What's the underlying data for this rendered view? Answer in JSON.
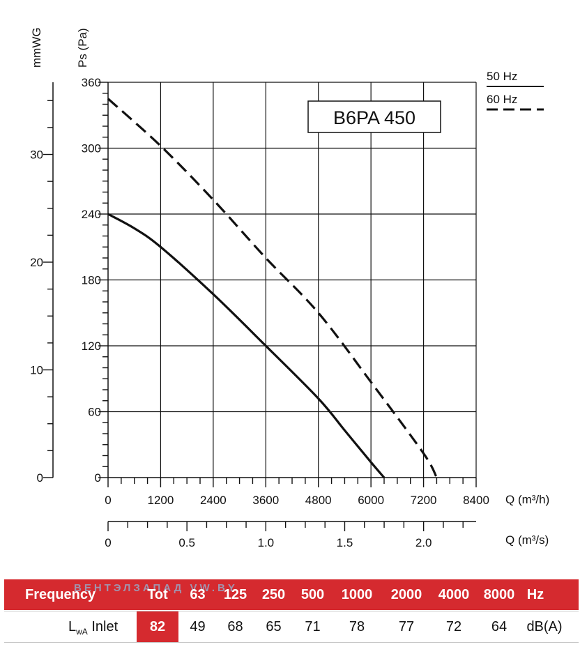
{
  "chart_data": {
    "type": "line",
    "model": "B6PA 450",
    "y_axis": {
      "label": "Ps (Pa)",
      "ticks": [
        "360",
        "300",
        "240",
        "180",
        "120",
        "60",
        "0"
      ],
      "range": [
        0,
        360
      ]
    },
    "y2_axis": {
      "label": "mmWG",
      "ticks": [
        "30",
        "20",
        "10",
        "0"
      ],
      "range": [
        0,
        36.7
      ]
    },
    "x_axis": {
      "label": "Q (m³/h)",
      "ticks": [
        "0",
        "1200",
        "2400",
        "3600",
        "4800",
        "6000",
        "7200",
        "8400"
      ],
      "range": [
        0,
        8400
      ]
    },
    "x2_axis": {
      "label": "Q (m³/s)",
      "ticks": [
        "0",
        "0.5",
        "1.0",
        "1.5",
        "2.0"
      ],
      "range": [
        0,
        2.333
      ]
    },
    "grid": true,
    "series": [
      {
        "name": "50 Hz",
        "style": "solid",
        "x": [
          0,
          600,
          1200,
          2400,
          3600,
          4800,
          5400,
          6000,
          6300
        ],
        "y": [
          240,
          227,
          210,
          167,
          120,
          72,
          43,
          14,
          0
        ]
      },
      {
        "name": "60 Hz",
        "style": "dashed",
        "x": [
          0,
          1200,
          2400,
          3600,
          4800,
          6000,
          7200,
          7500
        ],
        "y": [
          345,
          302,
          253,
          200,
          150,
          87,
          22,
          0
        ]
      }
    ]
  },
  "sound_table": {
    "header_label": "Frequency",
    "header_cells": [
      "Tot",
      "63",
      "125",
      "250",
      "500",
      "1000",
      "2000",
      "4000",
      "8000",
      "Hz"
    ],
    "row_label_main": "L",
    "row_label_sub": "wA",
    "row_label_suffix": "Inlet",
    "total": "82",
    "values": [
      "49",
      "68",
      "65",
      "71",
      "78",
      "77",
      "72",
      "64"
    ],
    "unit": "dB(A)",
    "watermark": "ВЕНТЭЛЗАПАД   VW.BY"
  },
  "colors": {
    "accent": "#d52a2f",
    "line": "#111111",
    "grid": "#111111"
  }
}
